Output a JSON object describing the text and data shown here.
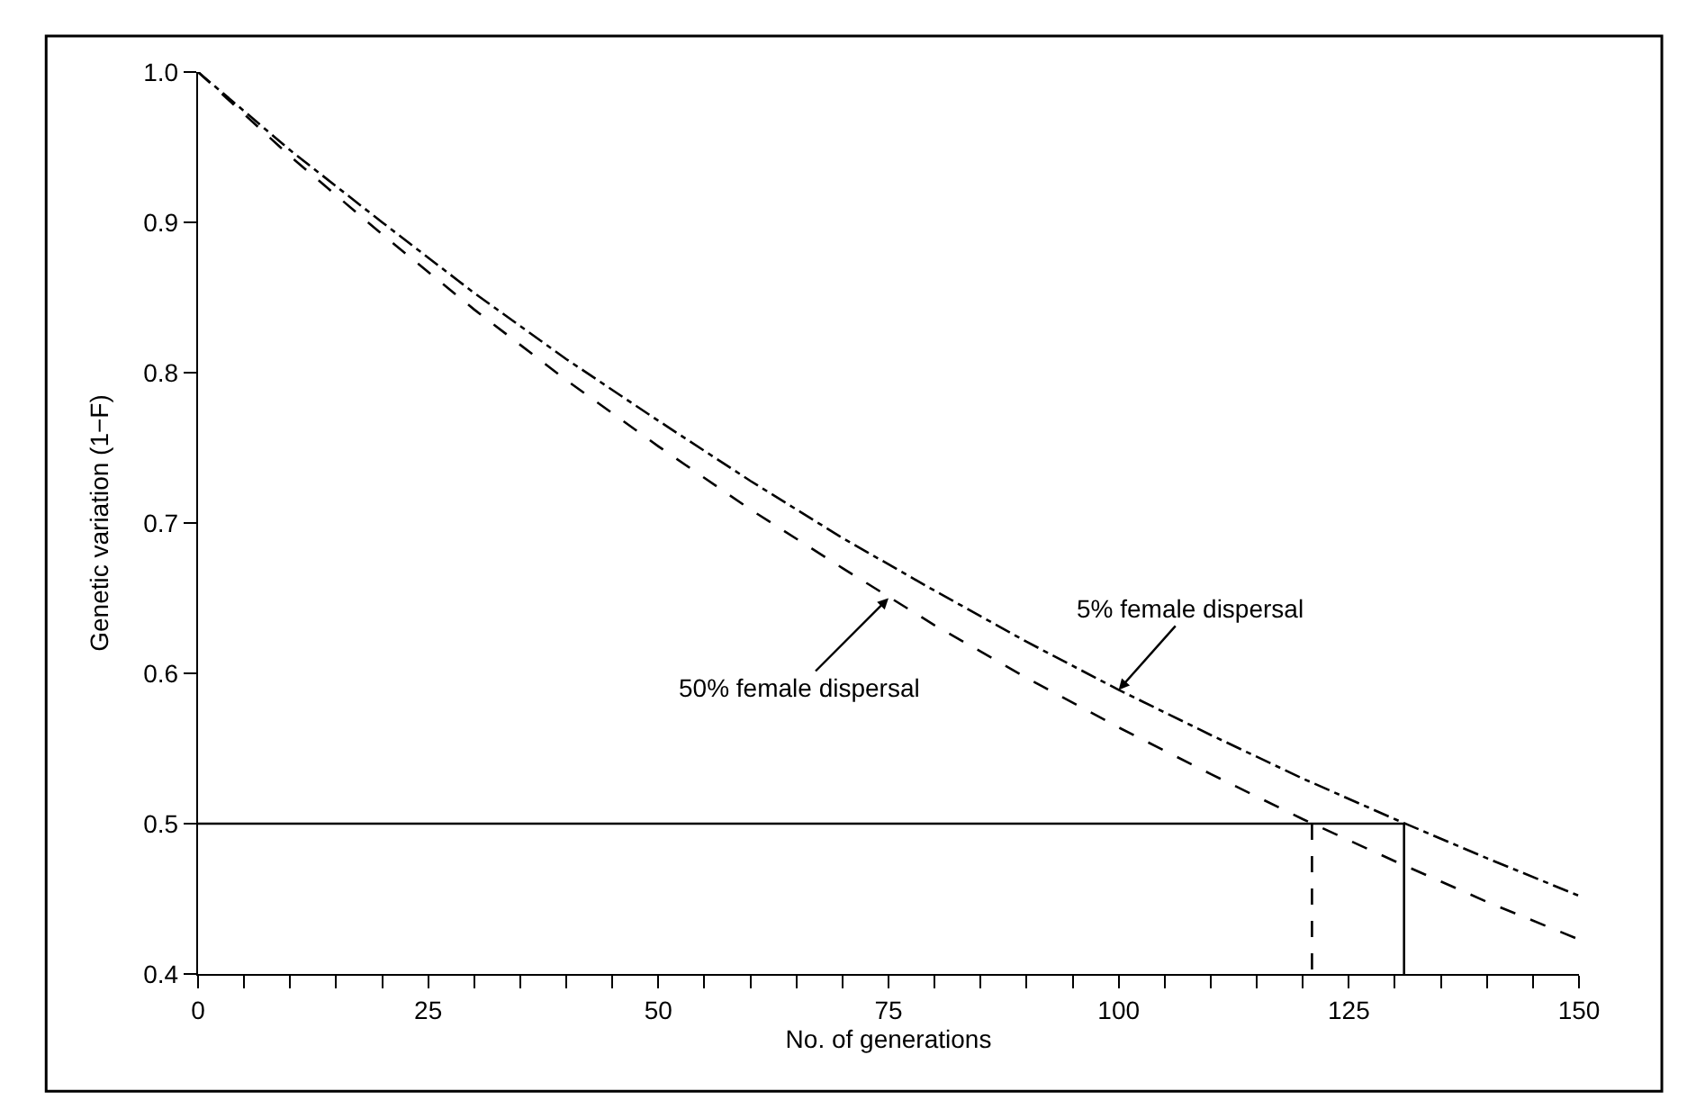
{
  "chart_data": {
    "type": "line",
    "xlabel": "No. of generations",
    "ylabel": "Genetic variation (1−F)",
    "x": [
      0,
      10,
      20,
      30,
      40,
      50,
      60,
      70,
      80,
      90,
      100,
      110,
      120,
      130,
      140,
      150
    ],
    "series": [
      {
        "color": "#000000",
        "line_style": "dashdot",
        "values": [
          1.0,
          0.948,
          0.9,
          0.853,
          0.809,
          0.768,
          0.728,
          0.69,
          0.655,
          0.621,
          0.589,
          0.559,
          0.53,
          0.503,
          0.477,
          0.452
        ]
      },
      {
        "color": "#000000",
        "line_style": "dashed",
        "values": [
          1.0,
          0.944,
          0.892,
          0.842,
          0.795,
          0.751,
          0.709,
          0.67,
          0.632,
          0.597,
          0.564,
          0.533,
          0.503,
          0.475,
          0.448,
          0.423
        ]
      },
      {
        "color": "#000000",
        "line_style": "solid",
        "x": [
          0,
          131,
          131
        ],
        "values": [
          0.5,
          0.5,
          0.4
        ]
      },
      {
        "color": "#000000",
        "line_style": "dashed",
        "x": [
          121,
          121
        ],
        "values": [
          0.5,
          0.4
        ]
      }
    ],
    "annotations": [
      {
        "text": "5% female dispersal",
        "x": 100,
        "y": 0.589
      },
      {
        "text": "50% female dispersal",
        "x": 75,
        "y": 0.65
      }
    ],
    "xlim": [
      0,
      150
    ],
    "ylim": [
      0.4,
      1.0
    ],
    "xticks": [
      0,
      {
        "value": 5,
        "label": null
      },
      {
        "value": 10,
        "label": null
      },
      {
        "value": 15,
        "label": null
      },
      {
        "value": 20,
        "label": null
      },
      25,
      {
        "value": 30,
        "label": null
      },
      {
        "value": 35,
        "label": null
      },
      {
        "value": 40,
        "label": null
      },
      {
        "value": 45,
        "label": null
      },
      50,
      {
        "value": 55,
        "label": null
      },
      {
        "value": 60,
        "label": null
      },
      {
        "value": 65,
        "label": null
      },
      {
        "value": 70,
        "label": null
      },
      75,
      {
        "value": 80,
        "label": null
      },
      {
        "value": 85,
        "label": null
      },
      {
        "value": 90,
        "label": null
      },
      {
        "value": 95,
        "label": null
      },
      100,
      {
        "value": 105,
        "label": null
      },
      {
        "value": 110,
        "label": null
      },
      {
        "value": 115,
        "label": null
      },
      {
        "value": 120,
        "label": null
      },
      125,
      {
        "value": 130,
        "label": null
      },
      {
        "value": 135,
        "label": null
      },
      {
        "value": 140,
        "label": null
      },
      {
        "value": 145,
        "label": null
      },
      150
    ],
    "yticks": [
      {
        "value": 0.4,
        "label": "0.4"
      },
      {
        "value": 0.5,
        "label": "0.5"
      },
      {
        "value": 0.6,
        "label": "0.6"
      },
      {
        "value": 0.7,
        "label": "0.7"
      },
      {
        "value": 0.8,
        "label": "0.8"
      },
      {
        "value": 0.9,
        "label": "0.9"
      },
      {
        "value": 1.0,
        "label": "1.0"
      }
    ],
    "marker": "none"
  }
}
